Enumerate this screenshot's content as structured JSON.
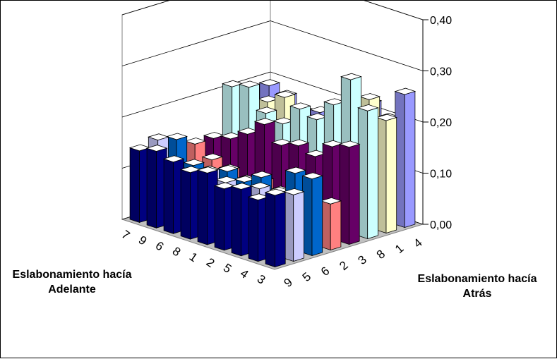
{
  "chart_data": {
    "type": "bar3d",
    "title": "",
    "x_axis_title": "Eslabonamiento hacía Adelante",
    "depth_axis_title": "Eslabonamiento hacía Atrás",
    "x_categories": [
      "3",
      "4",
      "5",
      "2",
      "1",
      "8",
      "6",
      "9",
      "7"
    ],
    "depth_categories": [
      "9",
      "5",
      "6",
      "2",
      "3",
      "8",
      "1",
      "4"
    ],
    "zlim": [
      0,
      0.4
    ],
    "z_ticks": [
      "0,00",
      "0,10",
      "0,20",
      "0,30",
      "0,40"
    ],
    "grid": true,
    "series_colors": [
      "#000080",
      "#ccccff",
      "#0066cc",
      "#ff8080",
      "#660066",
      "#ccffff",
      "#ffffcc",
      "#9999ff"
    ],
    "values": [
      [
        0.14,
        0.12,
        0.13,
        0.12,
        0.14,
        0.13,
        0.14,
        0.15,
        0.14
      ],
      [
        0.13,
        0.11,
        0.12,
        0.1,
        0.11,
        0.12,
        0.09,
        0.1,
        0.15
      ],
      [
        0.15,
        0.15,
        0.1,
        0.12,
        0.1,
        0.11,
        0.09,
        0.1,
        0.14
      ],
      [
        0.09,
        0.07,
        0.07,
        0.08,
        0.09,
        0.08,
        0.09,
        0.1,
        0.12
      ],
      [
        0.19,
        0.18,
        0.15,
        0.16,
        0.15,
        0.18,
        0.15,
        0.13,
        0.12
      ],
      [
        0.25,
        0.3,
        0.24,
        0.2,
        0.21,
        0.17,
        0.18,
        0.22,
        0.21
      ],
      [
        0.22,
        0.25,
        0.2,
        0.19,
        0.16,
        0.17,
        0.2,
        0.18,
        0.16
      ],
      [
        0.26,
        0.2,
        0.22,
        0.18,
        0.16,
        0.17,
        0.16,
        0.18,
        0.19
      ]
    ]
  }
}
